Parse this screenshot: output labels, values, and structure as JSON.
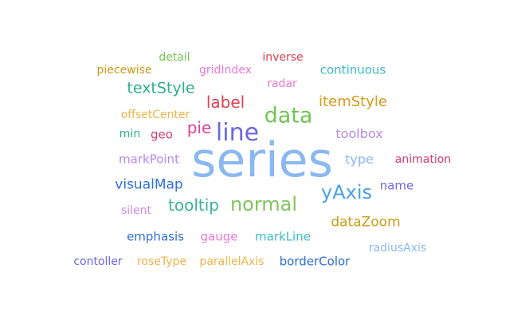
{
  "chart_data": {
    "type": "wordcloud",
    "words": [
      {
        "text": "series",
        "weight": 100,
        "color": "#8ab8f0"
      },
      {
        "text": "line",
        "weight": 42,
        "color": "#6b68e0"
      },
      {
        "text": "data",
        "weight": 38,
        "color": "#72c454"
      },
      {
        "text": "yAxis",
        "weight": 34,
        "color": "#4aa0e6"
      },
      {
        "text": "normal",
        "weight": 34,
        "color": "#82c45e"
      },
      {
        "text": "label",
        "weight": 28,
        "color": "#d9424f"
      },
      {
        "text": "pie",
        "weight": 28,
        "color": "#d9449a"
      },
      {
        "text": "tooltip",
        "weight": 28,
        "color": "#3cb49a"
      },
      {
        "text": "textStyle",
        "weight": 26,
        "color": "#2eae8c"
      },
      {
        "text": "itemStyle",
        "weight": 24,
        "color": "#d49a1a"
      },
      {
        "text": "visualMap",
        "weight": 22,
        "color": "#2b6fd6"
      },
      {
        "text": "dataZoom",
        "weight": 22,
        "color": "#cc9a16"
      },
      {
        "text": "toolbox",
        "weight": 21,
        "color": "#b888ee"
      },
      {
        "text": "type",
        "weight": 21,
        "color": "#8ab8f0"
      },
      {
        "text": "geo",
        "weight": 20,
        "color": "#d63c6e"
      },
      {
        "text": "markPoint",
        "weight": 19,
        "color": "#b888ee"
      },
      {
        "text": "name",
        "weight": 19,
        "color": "#6b68e0"
      },
      {
        "text": "radar",
        "weight": 18,
        "color": "#ee78d0"
      },
      {
        "text": "emphasis",
        "weight": 18,
        "color": "#2b6fd6"
      },
      {
        "text": "gauge",
        "weight": 18,
        "color": "#ee78d0"
      },
      {
        "text": "markLine",
        "weight": 18,
        "color": "#3cbcc8"
      },
      {
        "text": "continuous",
        "weight": 18,
        "color": "#3cbcc8"
      },
      {
        "text": "borderColor",
        "weight": 18,
        "color": "#2b6fd6"
      },
      {
        "text": "radiusAxis",
        "weight": 17,
        "color": "#8ab8f0"
      },
      {
        "text": "animation",
        "weight": 17,
        "color": "#d63c6e"
      },
      {
        "text": "parallelAxis",
        "weight": 17,
        "color": "#f0b44a"
      },
      {
        "text": "roseType",
        "weight": 17,
        "color": "#f0b44a"
      },
      {
        "text": "piecewise",
        "weight": 16,
        "color": "#cc9a16"
      },
      {
        "text": "gridIndex",
        "weight": 16,
        "color": "#ee78d0"
      },
      {
        "text": "inverse",
        "weight": 16,
        "color": "#d9424f"
      },
      {
        "text": "offsetCenter",
        "weight": 16,
        "color": "#f0b44a"
      },
      {
        "text": "min",
        "weight": 16,
        "color": "#2eae8c"
      },
      {
        "text": "silent",
        "weight": 16,
        "color": "#cf8af0"
      },
      {
        "text": "contoller",
        "weight": 16,
        "color": "#6b68e0"
      },
      {
        "text": "detail",
        "weight": 15,
        "color": "#72c454"
      }
    ]
  }
}
